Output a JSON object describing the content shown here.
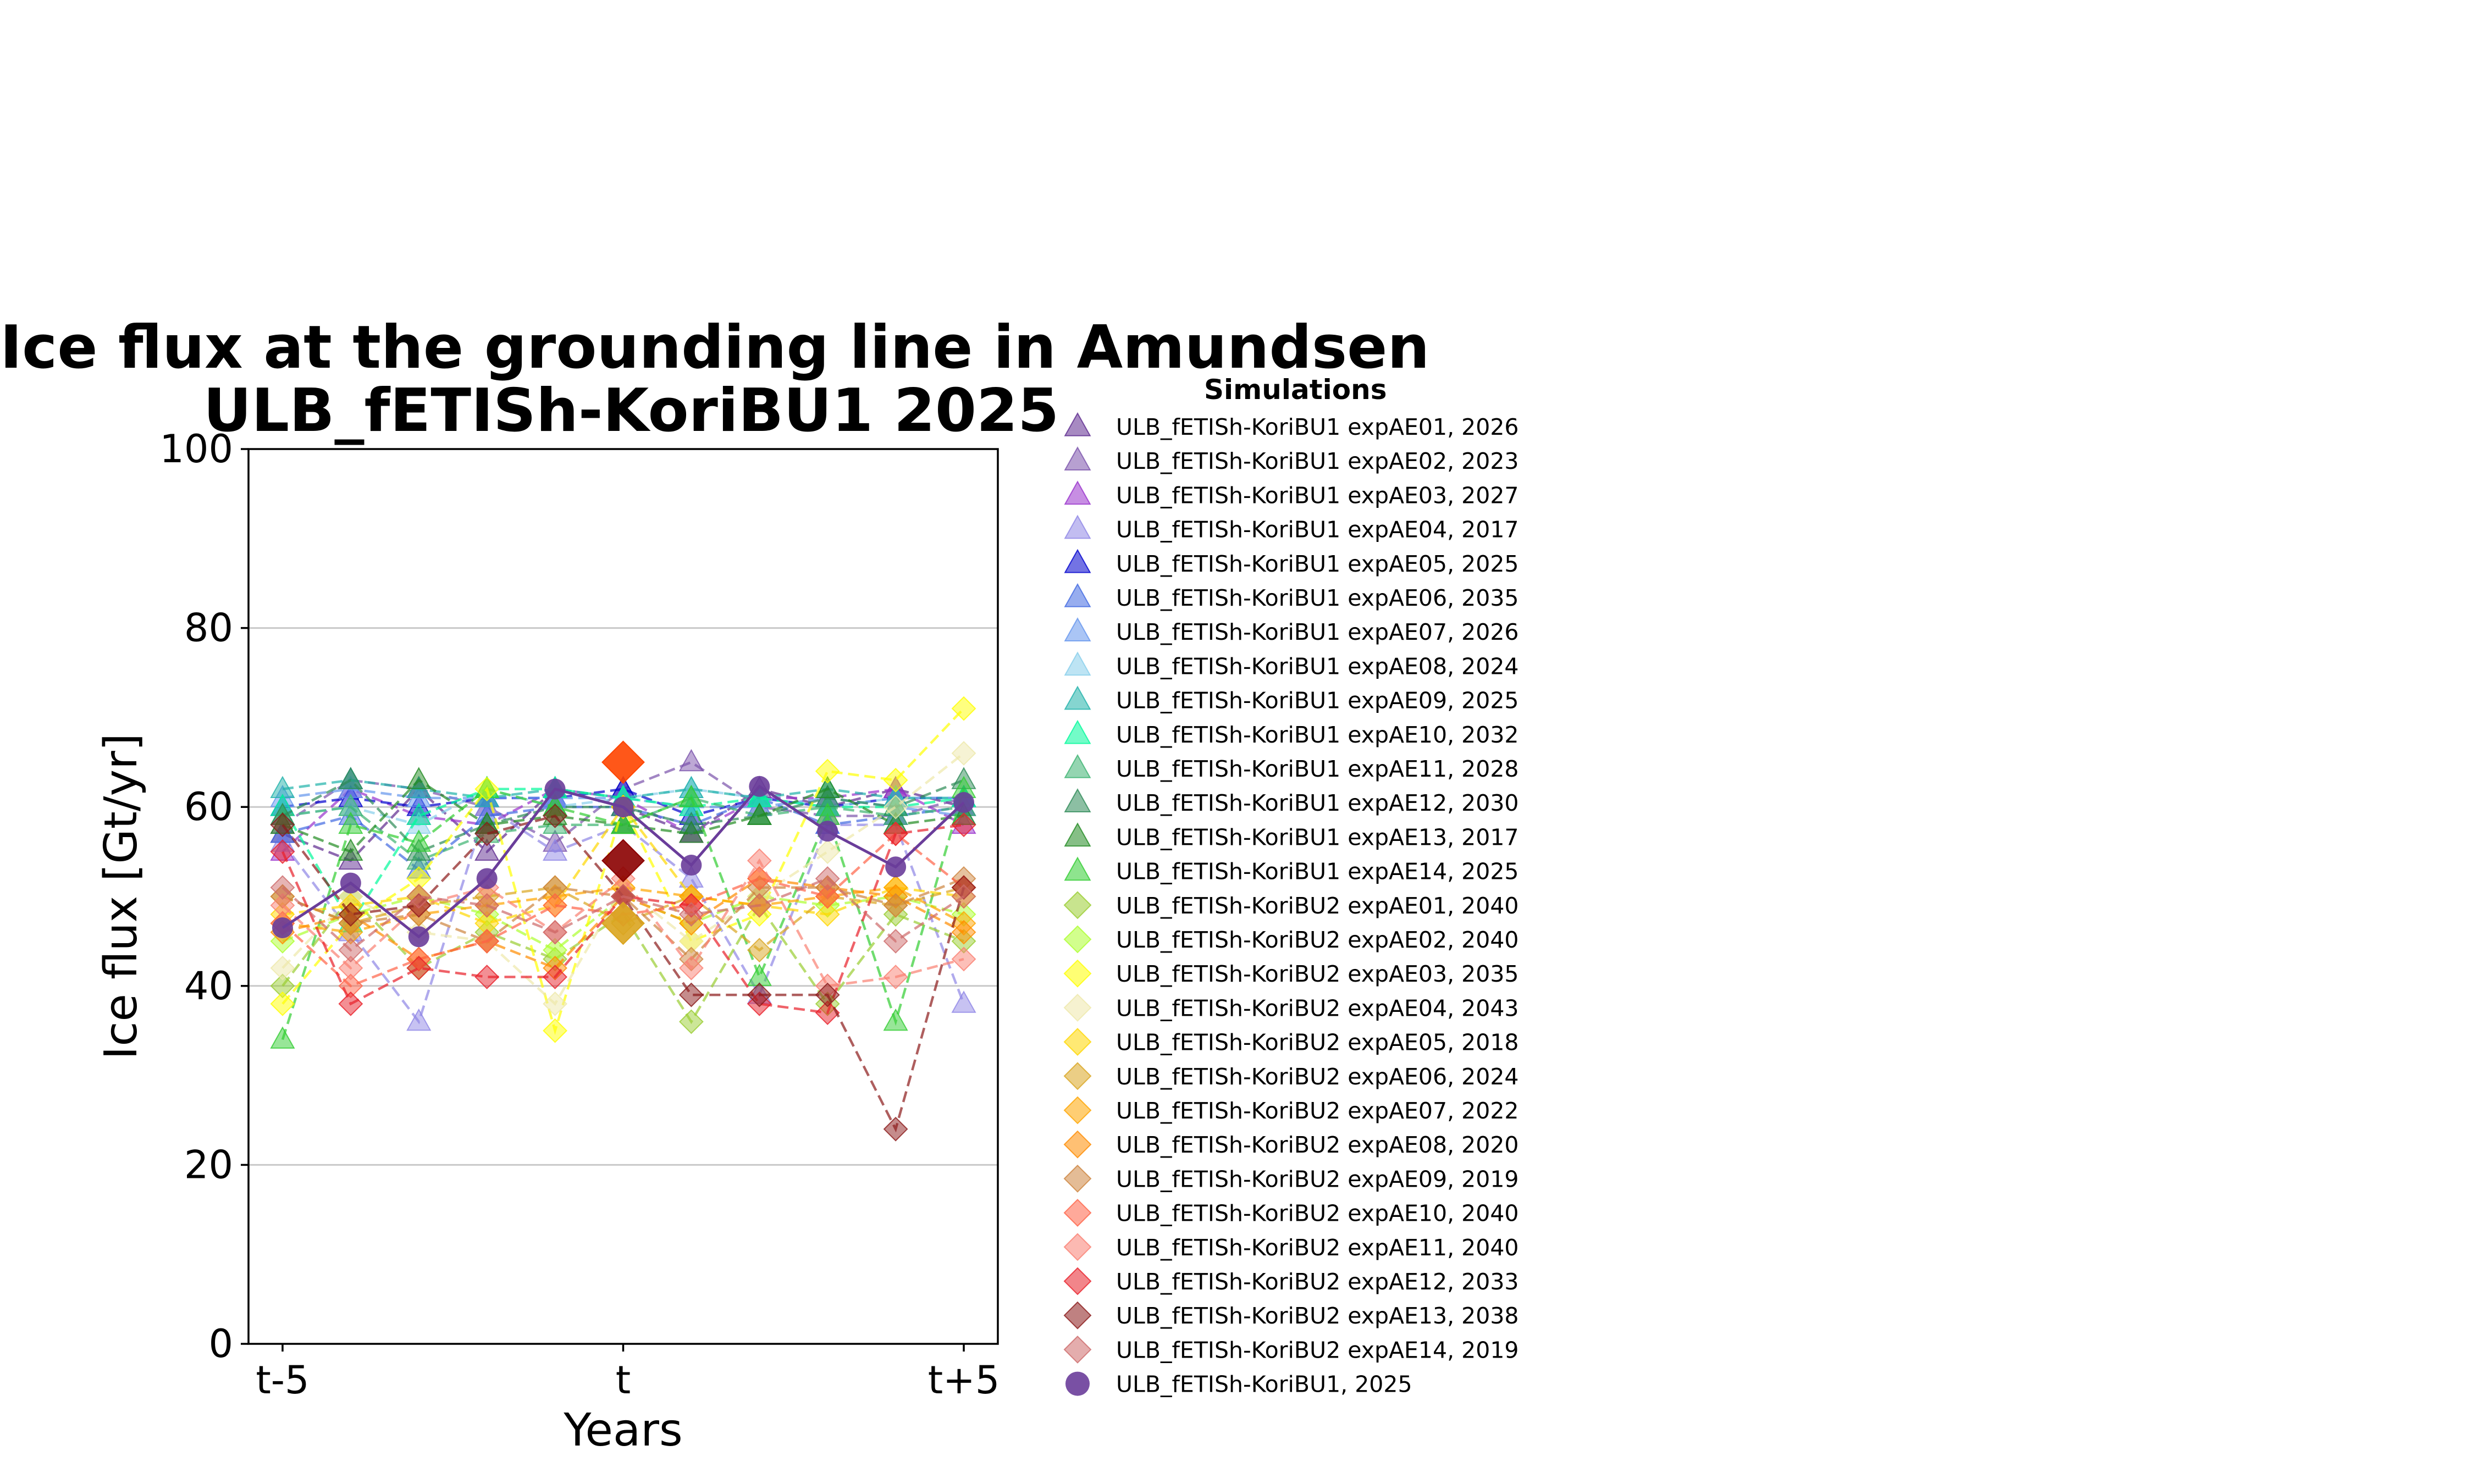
{
  "chart_data": {
    "type": "line",
    "title": [
      "Ice flux at the grounding line in Amundsen",
      "ULB_fETISh-KoriBU1 2025"
    ],
    "xlabel": "Years",
    "ylabel": "Ice flux [Gt/yr]",
    "xlim": [
      -5.5,
      5.5
    ],
    "ylim": [
      0,
      100
    ],
    "x": [
      -5,
      -4,
      -3,
      -2,
      -1,
      0,
      1,
      2,
      3,
      4,
      5
    ],
    "x_ticks": [
      {
        "value": -5,
        "label": "t-5"
      },
      {
        "value": 0,
        "label": "t"
      },
      {
        "value": 5,
        "label": "t+5"
      }
    ],
    "y_ticks": [
      0,
      20,
      40,
      60,
      80,
      100
    ],
    "grid": "horizontal",
    "legend_title": "Simulations",
    "legend_position": "outside-right",
    "highlight_points": [
      {
        "x": 0,
        "y": 65,
        "color": "#ff4500"
      },
      {
        "x": 0,
        "y": 54,
        "color": "#8b0000"
      },
      {
        "x": 0,
        "y": 47,
        "color": "#daa520"
      }
    ],
    "series": [
      {
        "name": "ULB_fETISh-KoriBU1 expAE01, 2026",
        "marker": "triangle",
        "color": "#5e2a8f",
        "values": [
          57,
          54,
          62,
          55,
          62,
          60,
          57,
          62,
          60,
          62,
          60
        ]
      },
      {
        "name": "ULB_fETISh-KoriBU1 expAE02, 2023",
        "marker": "triangle",
        "color": "#7b52ab",
        "values": [
          58,
          63,
          62,
          60,
          56,
          62,
          65,
          60,
          59,
          59,
          61
        ]
      },
      {
        "name": "ULB_fETISh-KoriBU1 expAE03, 2027",
        "marker": "triangle",
        "color": "#9932cc",
        "values": [
          55,
          62,
          59,
          58,
          62,
          61,
          57,
          61,
          61,
          62,
          58
        ]
      },
      {
        "name": "ULB_fETISh-KoriBU1 expAE04, 2017",
        "marker": "triangle",
        "color": "#8f86e6",
        "values": [
          56,
          46,
          36,
          60,
          55,
          58,
          52,
          39,
          58,
          58,
          38
        ]
      },
      {
        "name": "ULB_fETISh-KoriBU1 expAE05, 2025",
        "marker": "triangle",
        "color": "#0000cd",
        "values": [
          60,
          61,
          60,
          61,
          61,
          62,
          59,
          61,
          60,
          61,
          61
        ]
      },
      {
        "name": "ULB_fETISh-KoriBU1 expAE06, 2035",
        "marker": "triangle",
        "color": "#4169e1",
        "values": [
          57,
          59,
          53,
          59,
          60,
          60,
          58,
          61,
          58,
          59,
          60
        ]
      },
      {
        "name": "ULB_fETISh-KoriBU1 expAE07, 2026",
        "marker": "triangle",
        "color": "#6495ed",
        "values": [
          61,
          62,
          61,
          61,
          61,
          61,
          60,
          60,
          61,
          60,
          59
        ]
      },
      {
        "name": "ULB_fETISh-KoriBU1 expAE08, 2024",
        "marker": "triangle",
        "color": "#87ceeb",
        "values": [
          59,
          60,
          58,
          62,
          60,
          61,
          62,
          61,
          60,
          61,
          61
        ]
      },
      {
        "name": "ULB_fETISh-KoriBU1 expAE09, 2025",
        "marker": "triangle",
        "color": "#20b2aa",
        "values": [
          62,
          63,
          62,
          61,
          62,
          61,
          62,
          61,
          62,
          61,
          61
        ]
      },
      {
        "name": "ULB_fETISh-KoriBU1 expAE10, 2032",
        "marker": "triangle",
        "color": "#00fa9a",
        "values": [
          60,
          47,
          59,
          62,
          62,
          61,
          60,
          61,
          60,
          60,
          61
        ]
      },
      {
        "name": "ULB_fETISh-KoriBU1 expAE11, 2028",
        "marker": "triangle",
        "color": "#3cb371",
        "values": [
          59,
          60,
          54,
          57,
          58,
          58,
          61,
          59,
          60,
          59,
          60
        ]
      },
      {
        "name": "ULB_fETISh-KoriBU1 expAE12, 2030",
        "marker": "triangle",
        "color": "#2e8b57",
        "values": [
          59,
          63,
          55,
          58,
          60,
          60,
          58,
          59,
          61,
          60,
          63
        ]
      },
      {
        "name": "ULB_fETISh-KoriBU1 expAE13, 2017",
        "marker": "triangle",
        "color": "#228b22",
        "values": [
          58,
          55,
          63,
          58,
          59,
          58,
          57,
          59,
          62,
          58,
          59
        ]
      },
      {
        "name": "ULB_fETISh-KoriBU1 expAE14, 2025",
        "marker": "triangle",
        "color": "#32cd32",
        "values": [
          34,
          58,
          56,
          62,
          60,
          58,
          61,
          41,
          59,
          36,
          62
        ]
      },
      {
        "name": "ULB_fETISh-KoriBU2 expAE01, 2040",
        "marker": "diamond",
        "color": "#9acd32",
        "values": [
          40,
          50,
          42,
          46,
          43,
          48,
          36,
          49,
          38,
          48,
          45
        ]
      },
      {
        "name": "ULB_fETISh-KoriBU2 expAE02, 2040",
        "marker": "diamond",
        "color": "#adff2f",
        "values": [
          45,
          48,
          50,
          48,
          44,
          50,
          47,
          50,
          49,
          50,
          48
        ]
      },
      {
        "name": "ULB_fETISh-KoriBU2 expAE03, 2035",
        "marker": "diamond",
        "color": "#ffff00",
        "values": [
          38,
          47,
          52,
          62,
          35,
          60,
          45,
          48,
          64,
          63,
          71
        ]
      },
      {
        "name": "ULB_fETISh-KoriBU2 expAE04, 2043",
        "marker": "diamond",
        "color": "#eee8aa",
        "values": [
          42,
          50,
          46,
          45,
          38,
          51,
          45,
          50,
          55,
          60,
          66
        ]
      },
      {
        "name": "ULB_fETISh-KoriBU2 expAE05, 2018",
        "marker": "diamond",
        "color": "#ffd700",
        "values": [
          48,
          49,
          50,
          47,
          49,
          60,
          50,
          49,
          48,
          51,
          50
        ]
      },
      {
        "name": "ULB_fETISh-KoriBU2 expAE06, 2024",
        "marker": "diamond",
        "color": "#daa520",
        "values": [
          50,
          47,
          49,
          50,
          51,
          47,
          50,
          44,
          50,
          49,
          51
        ]
      },
      {
        "name": "ULB_fETISh-KoriBU2 expAE07, 2022",
        "marker": "diamond",
        "color": "#ffa500",
        "values": [
          47,
          46,
          48,
          49,
          50,
          51,
          50,
          49,
          50,
          51,
          47
        ]
      },
      {
        "name": "ULB_fETISh-KoriBU2 expAE08, 2020",
        "marker": "diamond",
        "color": "#ff8c00",
        "values": [
          46,
          48,
          43,
          45,
          42,
          50,
          47,
          52,
          51,
          50,
          46
        ]
      },
      {
        "name": "ULB_fETISh-KoriBU2 expAE09, 2019",
        "marker": "diamond",
        "color": "#cd853f",
        "values": [
          50,
          47,
          48,
          45,
          51,
          50,
          43,
          51,
          51,
          49,
          52
        ]
      },
      {
        "name": "ULB_fETISh-KoriBU2 expAE10, 2040",
        "marker": "diamond",
        "color": "#ff6347",
        "values": [
          47,
          40,
          43,
          45,
          49,
          48,
          49,
          52,
          50,
          57,
          51
        ]
      },
      {
        "name": "ULB_fETISh-KoriBU2 expAE11, 2040",
        "marker": "diamond",
        "color": "#fa8072",
        "values": [
          49,
          42,
          49,
          51,
          46,
          52,
          42,
          54,
          40,
          41,
          43
        ]
      },
      {
        "name": "ULB_fETISh-KoriBU2 expAE12, 2033",
        "marker": "diamond",
        "color": "#e8202a",
        "values": [
          55,
          38,
          42,
          41,
          41,
          50,
          49,
          38,
          37,
          57,
          58
        ]
      },
      {
        "name": "ULB_fETISh-KoriBU2 expAE13, 2038",
        "marker": "diamond",
        "color": "#8b1a1a",
        "values": [
          58,
          48,
          49,
          57,
          59,
          50,
          39,
          39,
          39,
          24,
          51
        ]
      },
      {
        "name": "ULB_fETISh-KoriBU2 expAE14, 2019",
        "marker": "diamond",
        "color": "#cd6a6a",
        "values": [
          51,
          44,
          50,
          49,
          46,
          50,
          48,
          49,
          52,
          45,
          50
        ]
      },
      {
        "name": "ULB_fETISh-KoriBU1, 2025",
        "marker": "circle",
        "color": "#6a3d9a",
        "solid": true,
        "values": [
          46.5,
          51.5,
          45.5,
          52,
          62,
          60,
          53.5,
          62.3,
          57.3,
          53.3,
          60.5
        ]
      }
    ]
  }
}
